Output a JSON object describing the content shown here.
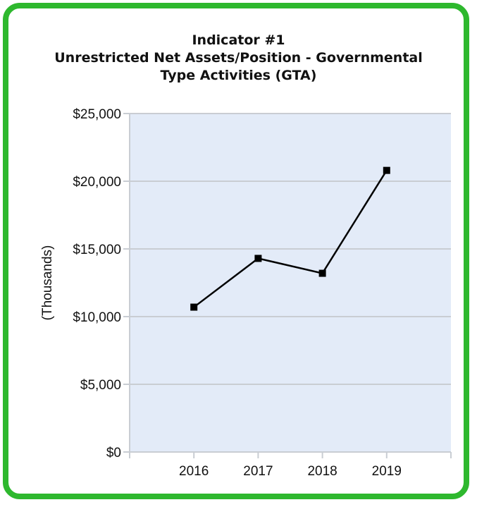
{
  "colors": {
    "frame_border": "#2eb82e",
    "plot_background": "#e3ebf8",
    "gridline": "#c9cdd3",
    "line": "#000000"
  },
  "chart_data": {
    "type": "line",
    "title_lines": [
      "Indicator #1",
      "Unrestricted Net Assets/Position - Governmental",
      "Type Activities (GTA)"
    ],
    "xlabel": "",
    "ylabel": "(Thousands)",
    "categories": [
      "2016",
      "2017",
      "2018",
      "2019"
    ],
    "series": [
      {
        "values": [
          10700,
          14300,
          13200,
          20800
        ]
      }
    ],
    "ylim": [
      0,
      25000
    ],
    "y_ticks": [
      0,
      5000,
      10000,
      15000,
      20000,
      25000
    ],
    "y_tick_labels": [
      "$0",
      "$5,000",
      "$10,000",
      "$15,000",
      "$20,000",
      "$25,000"
    ],
    "grid": true,
    "marker": "square",
    "legend": "none"
  }
}
